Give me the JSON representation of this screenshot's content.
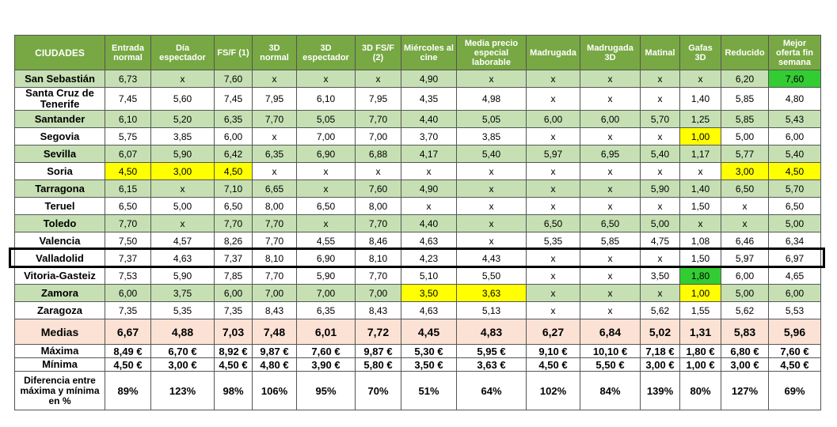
{
  "table": {
    "header": [
      "CIUDADES",
      "Entrada normal",
      "Día espectador",
      "FS/F (1)",
      "3D normal",
      "3D espectador",
      "3D FS/F (2)",
      "Miércoles al cine",
      "Media precio especial laborable",
      "Madrugada",
      "Madrugada 3D",
      "Matinal",
      "Gafas 3D",
      "Reducido",
      "Mejor oferta fin semana"
    ],
    "header_color": "#77a843",
    "rows": [
      {
        "fill": "#c6e0b4",
        "cells": [
          "San Sebastián",
          "6,73",
          "x",
          "7,60",
          "x",
          "x",
          "x",
          "4,90",
          "x",
          "x",
          "x",
          "x",
          "x",
          "6,20",
          "7,60"
        ],
        "highlight": {
          "14": "#33cc33"
        }
      },
      {
        "fill": "#ffffff",
        "cells": [
          "Santa Cruz de Tenerife",
          "7,45",
          "5,60",
          "7,45",
          "7,95",
          "6,10",
          "7,95",
          "4,35",
          "4,98",
          "x",
          "x",
          "x",
          "1,40",
          "5,85",
          "4,80"
        ]
      },
      {
        "fill": "#c6e0b4",
        "cells": [
          "Santander",
          "6,10",
          "5,20",
          "6,35",
          "7,70",
          "5,05",
          "7,70",
          "4,40",
          "5,05",
          "6,00",
          "6,00",
          "5,70",
          "1,25",
          "5,85",
          "5,43"
        ]
      },
      {
        "fill": "#ffffff",
        "cells": [
          "Segovia",
          "5,75",
          "3,85",
          "6,00",
          "x",
          "7,00",
          "7,00",
          "3,70",
          "3,85",
          "x",
          "x",
          "x",
          "1,00",
          "5,00",
          "6,00"
        ],
        "highlight": {
          "12": "#ffff00"
        }
      },
      {
        "fill": "#c6e0b4",
        "cells": [
          "Sevilla",
          "6,07",
          "5,90",
          "6,42",
          "6,35",
          "6,90",
          "6,88",
          "4,17",
          "5,40",
          "5,97",
          "6,95",
          "5,40",
          "1,17",
          "5,77",
          "5,40"
        ]
      },
      {
        "fill": "#ffffff",
        "cells": [
          "Soria",
          "4,50",
          "3,00",
          "4,50",
          "x",
          "x",
          "x",
          "x",
          "x",
          "x",
          "x",
          "x",
          "x",
          "3,00",
          "4,50"
        ],
        "highlight": {
          "1": "#ffff00",
          "2": "#ffff00",
          "3": "#ffff00",
          "13": "#ffff00",
          "14": "#ffff00"
        }
      },
      {
        "fill": "#c6e0b4",
        "cells": [
          "Tarragona",
          "6,15",
          "x",
          "7,10",
          "6,65",
          "x",
          "7,60",
          "4,90",
          "x",
          "x",
          "x",
          "5,90",
          "1,40",
          "6,50",
          "5,70"
        ]
      },
      {
        "fill": "#ffffff",
        "cells": [
          "Teruel",
          "6,50",
          "5,00",
          "6,50",
          "8,00",
          "6,50",
          "8,00",
          "x",
          "x",
          "x",
          "x",
          "x",
          "1,50",
          "x",
          "6,50"
        ]
      },
      {
        "fill": "#c6e0b4",
        "cells": [
          "Toledo",
          "7,70",
          "x",
          "7,70",
          "7,70",
          "x",
          "7,70",
          "4,40",
          "x",
          "6,50",
          "6,50",
          "5,00",
          "x",
          "x",
          "5,00"
        ]
      },
      {
        "fill": "#ffffff",
        "cells": [
          "Valencia",
          "7,50",
          "4,57",
          "8,26",
          "7,70",
          "4,55",
          "8,46",
          "4,63",
          "x",
          "5,35",
          "5,85",
          "4,75",
          "1,08",
          "6,46",
          "6,34"
        ]
      },
      {
        "fill": "#ffffff",
        "frame": "#000000",
        "cells": [
          "Valladolid",
          "7,37",
          "4,63",
          "7,37",
          "8,10",
          "6,90",
          "8,10",
          "4,23",
          "4,43",
          "x",
          "x",
          "x",
          "1,50",
          "5,97",
          "6,97"
        ]
      },
      {
        "fill": "#ffffff",
        "cells": [
          "Vitoria-Gasteiz",
          "7,53",
          "5,90",
          "7,85",
          "7,70",
          "5,90",
          "7,70",
          "5,10",
          "5,50",
          "x",
          "x",
          "3,50",
          "1,80",
          "6,00",
          "4,65"
        ],
        "highlight": {
          "12": "#33cc33"
        }
      },
      {
        "fill": "#c6e0b4",
        "cells": [
          "Zamora",
          "6,00",
          "3,75",
          "6,00",
          "7,00",
          "7,00",
          "7,00",
          "3,50",
          "3,63",
          "x",
          "x",
          "x",
          "1,00",
          "5,00",
          "6,00"
        ],
        "highlight": {
          "7": "#ffff00",
          "8": "#ffff00",
          "12": "#ffff00"
        }
      },
      {
        "fill": "#ffffff",
        "cells": [
          "Zaragoza",
          "7,35",
          "5,35",
          "7,35",
          "8,43",
          "6,35",
          "8,43",
          "4,63",
          "5,13",
          "x",
          "x",
          "5,62",
          "1,55",
          "5,62",
          "5,53"
        ]
      }
    ],
    "summary": [
      {
        "fill": "#fbe2d5",
        "cells": [
          "Medias",
          "6,67",
          "4,88",
          "7,03",
          "7,48",
          "6,01",
          "7,72",
          "4,45",
          "4,83",
          "6,27",
          "6,84",
          "5,02",
          "1,31",
          "5,83",
          "5,96"
        ]
      },
      {
        "fill": "#ffffff",
        "cells": [
          "Máxima",
          "8,49 €",
          "6,70 €",
          "8,92 €",
          "9,87 €",
          "7,60 €",
          "9,87 €",
          "5,30 €",
          "5,95 €",
          "9,10 €",
          "10,10 €",
          "7,18 €",
          "1,80 €",
          "6,80 €",
          "7,60 €"
        ]
      },
      {
        "fill": "#ffffff",
        "cells": [
          "Mínima",
          "4,50 €",
          "3,00 €",
          "4,50 €",
          "4,80 €",
          "3,90 €",
          "5,80 €",
          "3,50 €",
          "3,63 €",
          "4,50 €",
          "5,50 €",
          "3,00 €",
          "1,00 €",
          "3,00 €",
          "4,50 €"
        ]
      },
      {
        "fill": "#ffffff",
        "cells": [
          "Diferencia entre máxima y mínima en %",
          "89%",
          "123%",
          "98%",
          "106%",
          "95%",
          "70%",
          "51%",
          "64%",
          "102%",
          "84%",
          "139%",
          "80%",
          "127%",
          "69%"
        ]
      }
    ]
  }
}
